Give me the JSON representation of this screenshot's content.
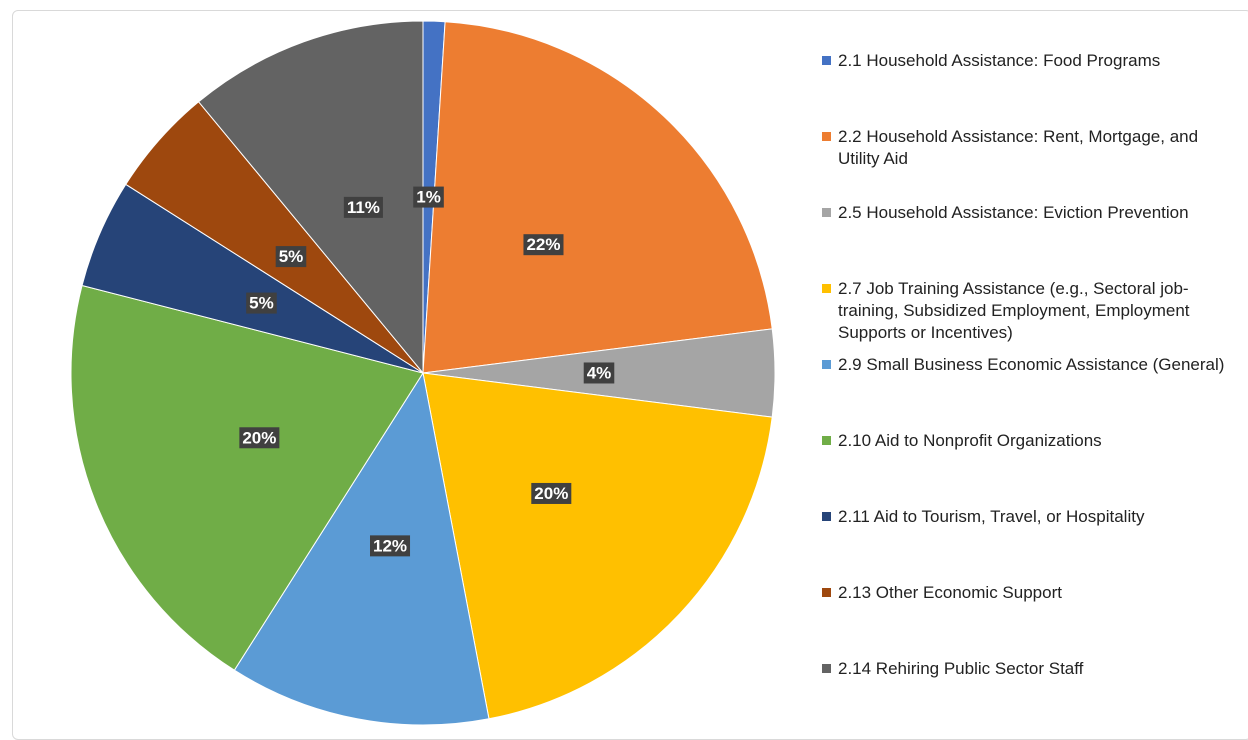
{
  "chart_data": {
    "type": "pie",
    "categories": [
      "2.1 Household Assistance: Food Programs",
      "2.2 Household Assistance: Rent, Mortgage, and Utility Aid",
      "2.5 Household Assistance: Eviction Prevention",
      "2.7 Job Training Assistance (e.g., Sectoral job-training, Subsidized Employment, Employment Supports or Incentives)",
      "2.9 Small Business Economic Assistance (General)",
      "2.10 Aid to Nonprofit Organizations",
      "2.11 Aid to Tourism, Travel, or Hospitality",
      "2.13 Other Economic Support",
      "2.14 Rehiring Public Sector Staff"
    ],
    "values": [
      1,
      22,
      4,
      20,
      12,
      20,
      5,
      5,
      11
    ],
    "value_labels": [
      "1%",
      "22%",
      "4%",
      "20%",
      "12%",
      "20%",
      "5%",
      "5%",
      "11%"
    ],
    "colors": [
      "#4472c4",
      "#ed7d31",
      "#a5a5a5",
      "#ffc000",
      "#5b9bd5",
      "#70ad47",
      "#264478",
      "#9e480e",
      "#636363"
    ],
    "legend": "right"
  }
}
